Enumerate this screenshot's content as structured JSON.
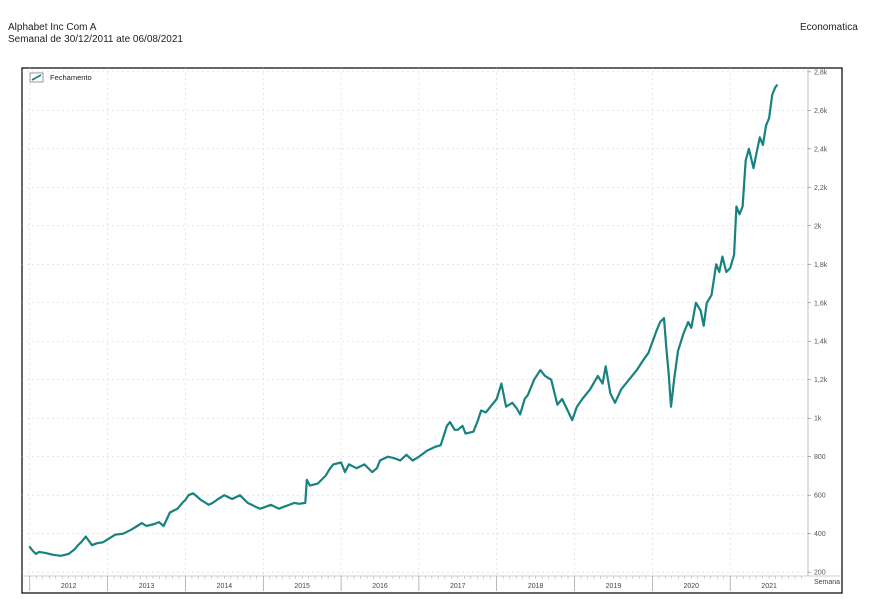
{
  "header": {
    "title": "Alphabet Inc Com A",
    "subtitle": "Semanal de 30/12/2011 ate 06/08/2021",
    "source": "Economatica"
  },
  "colors": {
    "series": "#17827f",
    "grid": "#d6d6d6",
    "frame": "#000000"
  },
  "chart_data": {
    "type": "line",
    "legend": {
      "label": "Fechamento",
      "placement": "top-left"
    },
    "ylim": [
      180,
      2820
    ],
    "yticks": [
      200,
      400,
      600,
      800,
      1000,
      1200,
      1400,
      1600,
      1800,
      2000,
      2200,
      2400,
      2600,
      2800
    ],
    "ytick_labels": [
      "200",
      "400",
      "600",
      "800",
      "1k",
      "1,2k",
      "1,4k",
      "1,6k",
      "1,8k",
      "2k",
      "2,2k",
      "2,4k",
      "2,6k",
      "2,8k"
    ],
    "xlim": [
      2011.9,
      2022.0
    ],
    "xtick_labels": [
      "2012",
      "2013",
      "2014",
      "2015",
      "2016",
      "2017",
      "2018",
      "2019",
      "2020",
      "2021"
    ],
    "xlabel": "Semana",
    "grid": true,
    "series": [
      {
        "name": "Fechamento",
        "x": [
          2012.0,
          2012.04,
          2012.08,
          2012.12,
          2012.2,
          2012.3,
          2012.4,
          2012.5,
          2012.58,
          2012.62,
          2012.66,
          2012.72,
          2012.8,
          2012.86,
          2012.94,
          2013.0,
          2013.1,
          2013.2,
          2013.3,
          2013.38,
          2013.44,
          2013.5,
          2013.6,
          2013.66,
          2013.72,
          2013.8,
          2013.9,
          2013.96,
          2014.0,
          2014.04,
          2014.1,
          2014.2,
          2014.3,
          2014.35,
          2014.42,
          2014.5,
          2014.6,
          2014.7,
          2014.8,
          2014.9,
          2014.96,
          2015.0,
          2015.1,
          2015.2,
          2015.3,
          2015.4,
          2015.46,
          2015.54,
          2015.56,
          2015.6,
          2015.7,
          2015.8,
          2015.86,
          2015.9,
          2016.0,
          2016.05,
          2016.1,
          2016.2,
          2016.3,
          2016.4,
          2016.46,
          2016.5,
          2016.6,
          2016.7,
          2016.76,
          2016.84,
          2016.92,
          2017.0,
          2017.1,
          2017.2,
          2017.28,
          2017.36,
          2017.4,
          2017.46,
          2017.5,
          2017.56,
          2017.6,
          2017.7,
          2017.76,
          2017.8,
          2017.86,
          2017.92,
          2018.0,
          2018.06,
          2018.12,
          2018.2,
          2018.26,
          2018.3,
          2018.36,
          2018.4,
          2018.48,
          2018.56,
          2018.62,
          2018.7,
          2018.78,
          2018.84,
          2018.9,
          2018.97,
          2019.03,
          2019.1,
          2019.2,
          2019.3,
          2019.36,
          2019.4,
          2019.46,
          2019.52,
          2019.6,
          2019.7,
          2019.8,
          2019.88,
          2019.95,
          2020.05,
          2020.1,
          2020.15,
          2020.18,
          2020.21,
          2020.24,
          2020.28,
          2020.33,
          2020.4,
          2020.46,
          2020.5,
          2020.56,
          2020.62,
          2020.66,
          2020.7,
          2020.76,
          2020.82,
          2020.86,
          2020.9,
          2020.95,
          2021.0,
          2021.05,
          2021.08,
          2021.12,
          2021.16,
          2021.2,
          2021.24,
          2021.3,
          2021.34,
          2021.38,
          2021.42,
          2021.46,
          2021.5,
          2021.54,
          2021.58,
          2021.6
        ],
        "y": [
          330,
          310,
          295,
          305,
          300,
          290,
          285,
          295,
          320,
          340,
          355,
          385,
          340,
          350,
          355,
          370,
          395,
          400,
          420,
          440,
          455,
          440,
          450,
          460,
          440,
          510,
          530,
          560,
          575,
          600,
          610,
          575,
          550,
          560,
          580,
          600,
          580,
          600,
          560,
          540,
          530,
          535,
          550,
          530,
          545,
          560,
          555,
          560,
          680,
          650,
          660,
          700,
          740,
          760,
          770,
          720,
          760,
          740,
          760,
          720,
          740,
          780,
          800,
          790,
          780,
          810,
          780,
          800,
          830,
          850,
          860,
          960,
          980,
          940,
          940,
          960,
          920,
          930,
          990,
          1040,
          1030,
          1060,
          1100,
          1180,
          1060,
          1080,
          1050,
          1020,
          1100,
          1120,
          1200,
          1250,
          1220,
          1200,
          1070,
          1100,
          1050,
          990,
          1060,
          1100,
          1150,
          1220,
          1180,
          1270,
          1130,
          1080,
          1150,
          1200,
          1250,
          1300,
          1340,
          1450,
          1500,
          1520,
          1360,
          1230,
          1060,
          1200,
          1350,
          1440,
          1500,
          1470,
          1600,
          1560,
          1480,
          1600,
          1640,
          1800,
          1760,
          1840,
          1760,
          1780,
          1850,
          2100,
          2060,
          2100,
          2340,
          2400,
          2300,
          2380,
          2460,
          2420,
          2520,
          2560,
          2680,
          2720,
          2730
        ]
      }
    ]
  }
}
